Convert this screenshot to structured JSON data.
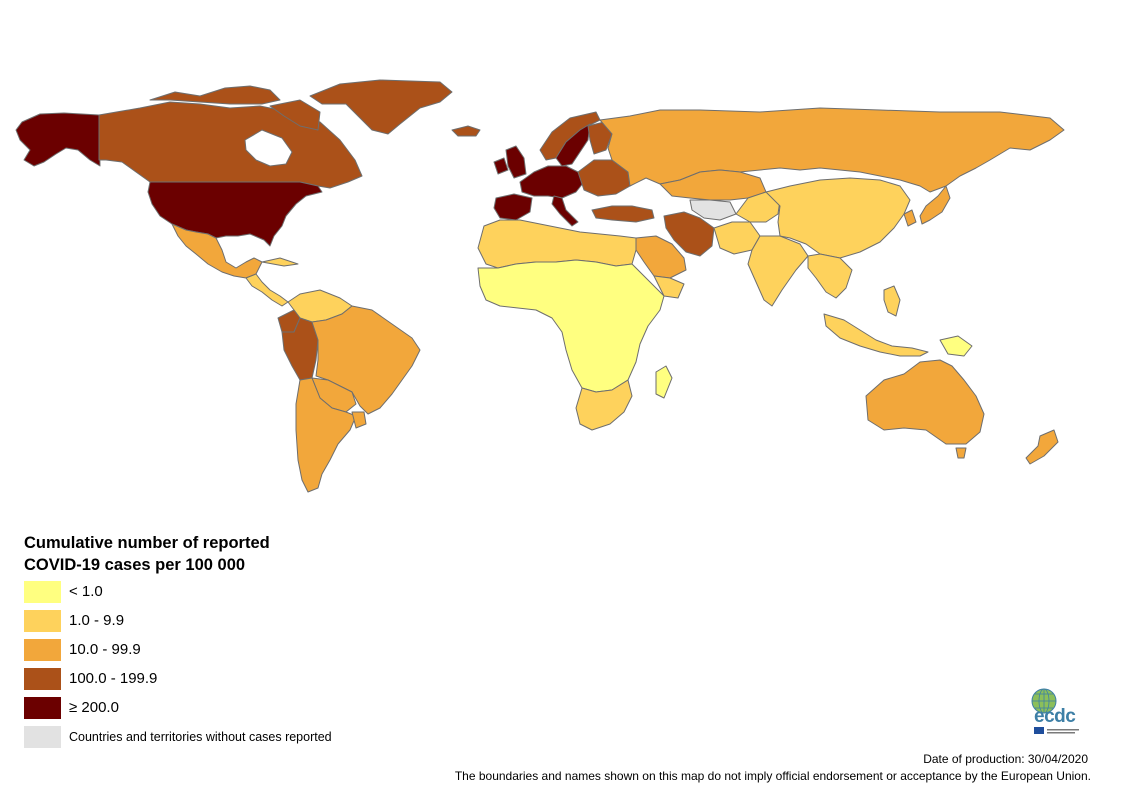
{
  "map": {
    "legend_title_line1": "Cumulative number of reported",
    "legend_title_line2": "COVID-19 cases per 100 000",
    "classes": [
      {
        "label": "< 1.0",
        "color": "#ffff80"
      },
      {
        "label": "1.0 - 9.9",
        "color": "#fed25c"
      },
      {
        "label": "10.0 - 99.9",
        "color": "#f2a73b"
      },
      {
        "label": "100.0 - 199.9",
        "color": "#ab5119"
      },
      {
        "label": "≥ 200.0",
        "color": "#6b0000"
      },
      {
        "label": "Countries and territories without cases reported",
        "color": "#e2e2e2"
      }
    ],
    "border_color": "#6e6e6e",
    "regions": [
      {
        "name": "United States",
        "class": "≥ 200.0"
      },
      {
        "name": "Canada",
        "class": "100.0 - 199.9"
      },
      {
        "name": "Alaska",
        "class": "≥ 200.0"
      },
      {
        "name": "Greenland",
        "class": "100.0 - 199.9"
      },
      {
        "name": "Mexico",
        "class": "10.0 - 99.9"
      },
      {
        "name": "Brazil",
        "class": "10.0 - 99.9"
      },
      {
        "name": "Peru",
        "class": "100.0 - 199.9"
      },
      {
        "name": "Ecuador",
        "class": "100.0 - 199.9"
      },
      {
        "name": "Spain",
        "class": "≥ 200.0"
      },
      {
        "name": "Italy",
        "class": "≥ 200.0"
      },
      {
        "name": "United Kingdom",
        "class": "≥ 200.0"
      },
      {
        "name": "Sweden",
        "class": "≥ 200.0"
      },
      {
        "name": "Iran",
        "class": "100.0 - 199.9"
      },
      {
        "name": "Russia",
        "class": "10.0 - 99.9"
      },
      {
        "name": "China",
        "class": "1.0 - 9.9"
      },
      {
        "name": "India",
        "class": "1.0 - 9.9"
      },
      {
        "name": "Australia",
        "class": "10.0 - 99.9"
      },
      {
        "name": "Saudi Arabia",
        "class": "10.0 - 99.9"
      },
      {
        "name": "Central Africa",
        "class": "< 1.0"
      },
      {
        "name": "South Africa",
        "class": "1.0 - 9.9"
      },
      {
        "name": "Turkmenistan",
        "class": "Countries and territories without cases reported"
      }
    ]
  },
  "logo": {
    "text": "ecdc",
    "icon": "ecdc-globe-logo-icon"
  },
  "footer": {
    "production": "Date of production: 30/04/2020",
    "disclaimer": "The boundaries and names shown on this map do not imply official endorsement or acceptance by the European Union."
  }
}
